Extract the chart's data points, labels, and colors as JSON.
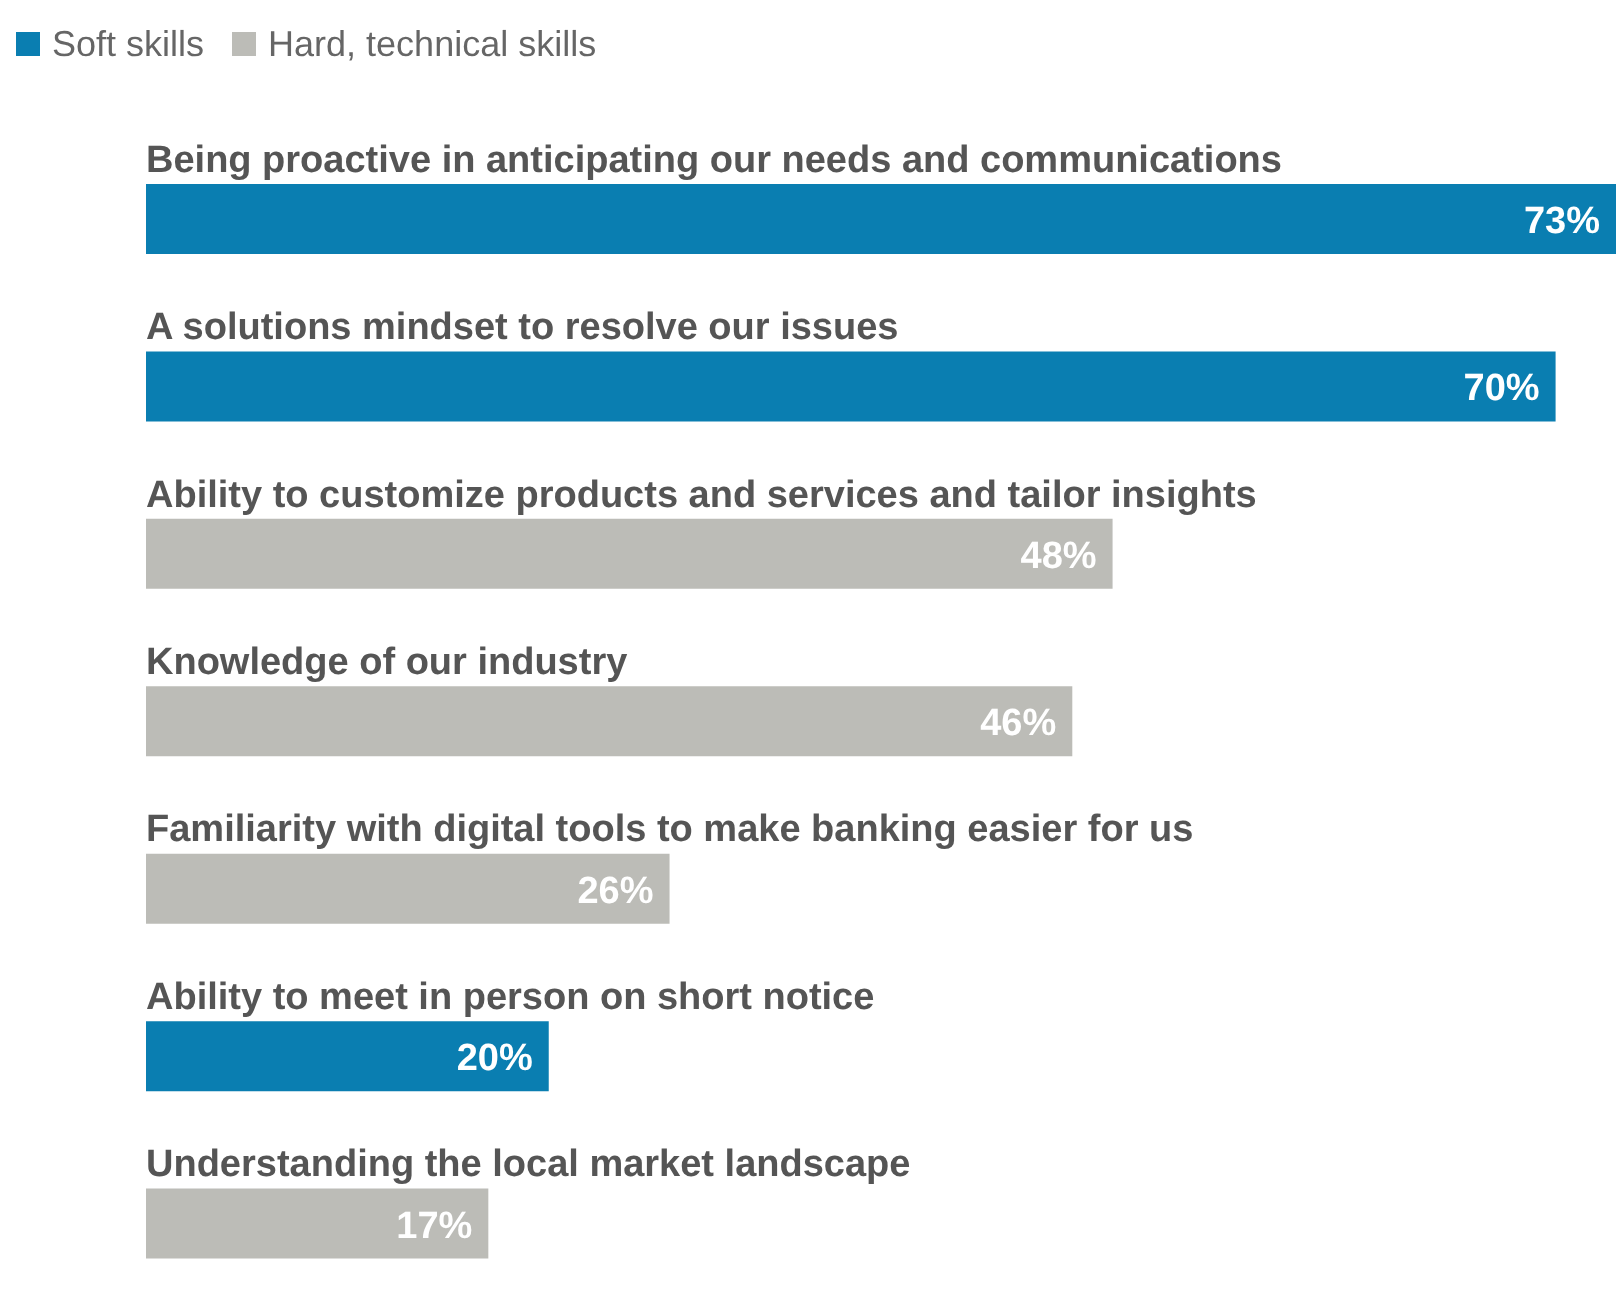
{
  "chart_data": {
    "type": "bar",
    "orientation": "horizontal",
    "legend": "top left",
    "xlim": [
      0,
      73
    ],
    "categories": [
      "Being proactive in anticipating our needs and communications",
      "A solutions mindset to resolve our issues",
      "Ability to customize products and services and tailor insights",
      "Knowledge of our industry",
      "Familiarity with digital tools to make banking easier for us",
      "Ability to meet in person on short notice",
      "Understanding the local market landscape"
    ],
    "series": [
      {
        "name": "Soft skills",
        "color": "#0a7eb1",
        "values": [
          73,
          70,
          null,
          null,
          null,
          20,
          null
        ],
        "value_labels": [
          "73%",
          "70%",
          null,
          null,
          null,
          "20%",
          null
        ]
      },
      {
        "name": "Hard, technical skills",
        "color": "#bcbcb7",
        "values": [
          null,
          null,
          48,
          46,
          26,
          null,
          17
        ],
        "value_labels": [
          null,
          null,
          "48%",
          "46%",
          "26%",
          null,
          "17%"
        ]
      }
    ]
  }
}
